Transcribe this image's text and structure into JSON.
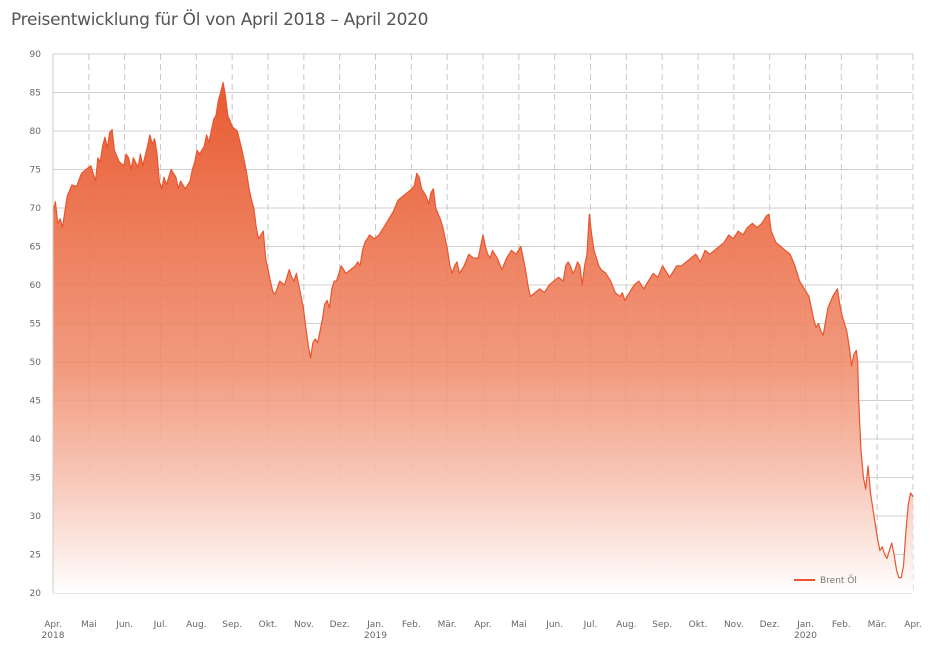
{
  "title": "Preisentwicklung für Öl von April 2018 – April 2020",
  "colors": {
    "line": "#e8552f",
    "fill_top": "#e85a30",
    "fill_bottom": "#ffffff",
    "grid": "#d0d0d0",
    "vgrid": "#c8c8c8"
  },
  "chart_data": {
    "type": "area",
    "title": "Preisentwicklung für Öl von April 2018 – April 2020",
    "xlabel": "",
    "ylabel": "",
    "ylim": [
      20,
      90
    ],
    "yticks": [
      20,
      25,
      30,
      35,
      40,
      45,
      50,
      55,
      60,
      65,
      70,
      75,
      80,
      85,
      90
    ],
    "grid": true,
    "legend": "bottom-right",
    "x_tick_labels": [
      {
        "label": "Apr.",
        "sub": "2018"
      },
      {
        "label": "Mai",
        "sub": ""
      },
      {
        "label": "Jun.",
        "sub": ""
      },
      {
        "label": "Jul.",
        "sub": ""
      },
      {
        "label": "Aug.",
        "sub": ""
      },
      {
        "label": "Sep.",
        "sub": ""
      },
      {
        "label": "Okt.",
        "sub": ""
      },
      {
        "label": "Nov.",
        "sub": ""
      },
      {
        "label": "Dez.",
        "sub": ""
      },
      {
        "label": "Jan.",
        "sub": "2019"
      },
      {
        "label": "Feb.",
        "sub": ""
      },
      {
        "label": "Mär.",
        "sub": ""
      },
      {
        "label": "Apr.",
        "sub": ""
      },
      {
        "label": "Mai",
        "sub": ""
      },
      {
        "label": "Jun.",
        "sub": ""
      },
      {
        "label": "Jul.",
        "sub": ""
      },
      {
        "label": "Aug.",
        "sub": ""
      },
      {
        "label": "Sep.",
        "sub": ""
      },
      {
        "label": "Okt.",
        "sub": ""
      },
      {
        "label": "Nov.",
        "sub": ""
      },
      {
        "label": "Dez.",
        "sub": ""
      },
      {
        "label": "Jan.",
        "sub": "2020"
      },
      {
        "label": "Feb.",
        "sub": ""
      },
      {
        "label": "Mär.",
        "sub": ""
      },
      {
        "label": "Apr.",
        "sub": ""
      }
    ],
    "series": [
      {
        "name": "Brent Öl",
        "points": [
          [
            0.0,
            69.5
          ],
          [
            0.05,
            70.8
          ],
          [
            0.1,
            68.0
          ],
          [
            0.15,
            68.6
          ],
          [
            0.2,
            67.5
          ],
          [
            0.3,
            71.5
          ],
          [
            0.4,
            73.0
          ],
          [
            0.5,
            72.8
          ],
          [
            0.6,
            74.5
          ],
          [
            0.7,
            75.0
          ],
          [
            0.8,
            75.5
          ],
          [
            0.9,
            73.5
          ],
          [
            0.95,
            76.5
          ],
          [
            1.0,
            76.0
          ],
          [
            1.05,
            78.0
          ],
          [
            1.1,
            79.2
          ],
          [
            1.15,
            77.8
          ],
          [
            1.2,
            79.8
          ],
          [
            1.25,
            80.2
          ],
          [
            1.3,
            77.5
          ],
          [
            1.4,
            76.0
          ],
          [
            1.5,
            75.5
          ],
          [
            1.55,
            77.0
          ],
          [
            1.6,
            76.5
          ],
          [
            1.65,
            75.0
          ],
          [
            1.7,
            76.5
          ],
          [
            1.8,
            75.3
          ],
          [
            1.85,
            77.0
          ],
          [
            1.9,
            75.5
          ],
          [
            2.0,
            78.0
          ],
          [
            2.05,
            79.5
          ],
          [
            2.1,
            78.3
          ],
          [
            2.15,
            79.0
          ],
          [
            2.2,
            77.0
          ],
          [
            2.25,
            73.5
          ],
          [
            2.3,
            72.5
          ],
          [
            2.35,
            74.0
          ],
          [
            2.4,
            73.0
          ],
          [
            2.5,
            75.0
          ],
          [
            2.6,
            74.0
          ],
          [
            2.65,
            72.5
          ],
          [
            2.7,
            73.5
          ],
          [
            2.8,
            72.5
          ],
          [
            2.9,
            73.5
          ],
          [
            2.95,
            75.0
          ],
          [
            3.0,
            76.0
          ],
          [
            3.05,
            77.5
          ],
          [
            3.1,
            77.0
          ],
          [
            3.2,
            78.0
          ],
          [
            3.25,
            79.5
          ],
          [
            3.3,
            78.5
          ],
          [
            3.35,
            80.0
          ],
          [
            3.4,
            81.5
          ],
          [
            3.45,
            82.0
          ],
          [
            3.5,
            84.0
          ],
          [
            3.55,
            85.0
          ],
          [
            3.6,
            86.3
          ],
          [
            3.65,
            84.5
          ],
          [
            3.7,
            82.0
          ],
          [
            3.8,
            80.5
          ],
          [
            3.9,
            80.0
          ],
          [
            4.0,
            77.5
          ],
          [
            4.05,
            76.0
          ],
          [
            4.1,
            74.5
          ],
          [
            4.15,
            72.5
          ],
          [
            4.2,
            71.0
          ],
          [
            4.25,
            70.0
          ],
          [
            4.3,
            67.5
          ],
          [
            4.35,
            66.0
          ],
          [
            4.4,
            66.5
          ],
          [
            4.45,
            67.0
          ],
          [
            4.5,
            63.5
          ],
          [
            4.55,
            62.0
          ],
          [
            4.6,
            60.5
          ],
          [
            4.65,
            59.2
          ],
          [
            4.7,
            58.8
          ],
          [
            4.8,
            60.5
          ],
          [
            4.9,
            60.0
          ],
          [
            5.0,
            62.0
          ],
          [
            5.05,
            61.0
          ],
          [
            5.1,
            60.5
          ],
          [
            5.15,
            61.5
          ],
          [
            5.2,
            60.0
          ],
          [
            5.25,
            58.5
          ],
          [
            5.3,
            57.0
          ],
          [
            5.35,
            54.5
          ],
          [
            5.4,
            52.2
          ],
          [
            5.45,
            50.5
          ],
          [
            5.5,
            52.5
          ],
          [
            5.55,
            53.0
          ],
          [
            5.6,
            52.5
          ],
          [
            5.65,
            54.0
          ],
          [
            5.7,
            55.5
          ],
          [
            5.75,
            57.5
          ],
          [
            5.8,
            58.0
          ],
          [
            5.85,
            57.0
          ],
          [
            5.9,
            59.5
          ],
          [
            5.95,
            60.5
          ],
          [
            6.0,
            60.5
          ],
          [
            6.05,
            61.5
          ],
          [
            6.1,
            62.5
          ],
          [
            6.2,
            61.5
          ],
          [
            6.3,
            62.0
          ],
          [
            6.4,
            62.5
          ],
          [
            6.45,
            63.0
          ],
          [
            6.5,
            62.5
          ],
          [
            6.55,
            64.5
          ],
          [
            6.6,
            65.5
          ],
          [
            6.7,
            66.5
          ],
          [
            6.8,
            66.0
          ],
          [
            6.9,
            66.5
          ],
          [
            7.0,
            67.5
          ],
          [
            7.1,
            68.5
          ],
          [
            7.2,
            69.5
          ],
          [
            7.3,
            71.0
          ],
          [
            7.4,
            71.5
          ],
          [
            7.5,
            72.0
          ],
          [
            7.6,
            72.5
          ],
          [
            7.65,
            73.0
          ],
          [
            7.7,
            74.5
          ],
          [
            7.75,
            74.0
          ],
          [
            7.8,
            72.5
          ],
          [
            7.85,
            72.0
          ],
          [
            7.9,
            71.5
          ],
          [
            7.95,
            70.5
          ],
          [
            8.0,
            72.0
          ],
          [
            8.05,
            72.5
          ],
          [
            8.1,
            70.0
          ],
          [
            8.2,
            68.5
          ],
          [
            8.25,
            67.5
          ],
          [
            8.3,
            66.0
          ],
          [
            8.35,
            64.5
          ],
          [
            8.4,
            62.5
          ],
          [
            8.45,
            61.5
          ],
          [
            8.5,
            62.5
          ],
          [
            8.55,
            63.0
          ],
          [
            8.6,
            61.5
          ],
          [
            8.7,
            62.5
          ],
          [
            8.8,
            64.0
          ],
          [
            8.9,
            63.5
          ],
          [
            9.0,
            63.5
          ],
          [
            9.05,
            65.0
          ],
          [
            9.1,
            66.5
          ],
          [
            9.15,
            65.0
          ],
          [
            9.2,
            64.0
          ],
          [
            9.25,
            63.5
          ],
          [
            9.3,
            64.5
          ],
          [
            9.4,
            63.5
          ],
          [
            9.5,
            62.0
          ],
          [
            9.6,
            63.5
          ],
          [
            9.7,
            64.5
          ],
          [
            9.8,
            64.0
          ],
          [
            9.9,
            65.0
          ],
          [
            10.0,
            62.0
          ],
          [
            10.05,
            60.0
          ],
          [
            10.1,
            58.5
          ],
          [
            10.2,
            59.0
          ],
          [
            10.3,
            59.5
          ],
          [
            10.4,
            59.0
          ],
          [
            10.5,
            60.0
          ],
          [
            10.6,
            60.5
          ],
          [
            10.7,
            61.0
          ],
          [
            10.8,
            60.5
          ],
          [
            10.85,
            62.5
          ],
          [
            10.9,
            63.0
          ],
          [
            10.95,
            62.5
          ],
          [
            11.0,
            61.5
          ],
          [
            11.05,
            62.0
          ],
          [
            11.1,
            63.0
          ],
          [
            11.15,
            62.5
          ],
          [
            11.2,
            60.0
          ],
          [
            11.25,
            62.5
          ],
          [
            11.3,
            64.0
          ],
          [
            11.35,
            69.2
          ],
          [
            11.4,
            66.5
          ],
          [
            11.45,
            64.5
          ],
          [
            11.5,
            63.5
          ],
          [
            11.55,
            62.5
          ],
          [
            11.6,
            62.0
          ],
          [
            11.7,
            61.5
          ],
          [
            11.8,
            60.5
          ],
          [
            11.9,
            59.0
          ],
          [
            12.0,
            58.5
          ],
          [
            12.05,
            59.0
          ],
          [
            12.1,
            58.0
          ],
          [
            12.2,
            59.0
          ],
          [
            12.3,
            60.0
          ],
          [
            12.4,
            60.5
          ],
          [
            12.5,
            59.5
          ],
          [
            12.6,
            60.5
          ],
          [
            12.7,
            61.5
          ],
          [
            12.8,
            61.0
          ],
          [
            12.9,
            62.5
          ],
          [
            13.0,
            61.5
          ],
          [
            13.05,
            61.0
          ],
          [
            13.1,
            61.5
          ],
          [
            13.2,
            62.5
          ],
          [
            13.3,
            62.5
          ],
          [
            13.4,
            63.0
          ],
          [
            13.5,
            63.5
          ],
          [
            13.6,
            64.0
          ],
          [
            13.7,
            63.0
          ],
          [
            13.8,
            64.5
          ],
          [
            13.9,
            64.0
          ],
          [
            14.0,
            64.5
          ],
          [
            14.1,
            65.0
          ],
          [
            14.2,
            65.5
          ],
          [
            14.3,
            66.5
          ],
          [
            14.4,
            66.0
          ],
          [
            14.5,
            67.0
          ],
          [
            14.6,
            66.5
          ],
          [
            14.7,
            67.5
          ],
          [
            14.8,
            68.0
          ],
          [
            14.9,
            67.5
          ],
          [
            15.0,
            68.0
          ],
          [
            15.05,
            68.5
          ],
          [
            15.1,
            69.0
          ],
          [
            15.15,
            69.2
          ],
          [
            15.2,
            67.0
          ],
          [
            15.3,
            65.5
          ],
          [
            15.4,
            65.0
          ],
          [
            15.5,
            64.5
          ],
          [
            15.6,
            64.0
          ],
          [
            15.7,
            62.5
          ],
          [
            15.8,
            60.5
          ],
          [
            15.9,
            59.5
          ],
          [
            16.0,
            58.5
          ],
          [
            16.05,
            57.0
          ],
          [
            16.1,
            55.5
          ],
          [
            16.15,
            54.5
          ],
          [
            16.2,
            55.0
          ],
          [
            16.25,
            54.0
          ],
          [
            16.3,
            53.5
          ],
          [
            16.4,
            57.0
          ],
          [
            16.5,
            58.5
          ],
          [
            16.6,
            59.5
          ],
          [
            16.65,
            57.5
          ],
          [
            16.7,
            56.0
          ],
          [
            16.8,
            54.0
          ],
          [
            16.85,
            52.0
          ],
          [
            16.9,
            49.5
          ],
          [
            16.95,
            51.0
          ],
          [
            17.0,
            51.5
          ],
          [
            17.03,
            50.0
          ],
          [
            17.05,
            45.0
          ],
          [
            17.1,
            38.5
          ],
          [
            17.15,
            35.0
          ],
          [
            17.2,
            33.5
          ],
          [
            17.25,
            36.5
          ],
          [
            17.3,
            33.0
          ],
          [
            17.35,
            31.0
          ],
          [
            17.4,
            29.0
          ],
          [
            17.45,
            27.0
          ],
          [
            17.5,
            25.5
          ],
          [
            17.55,
            26.0
          ],
          [
            17.6,
            25.0
          ],
          [
            17.65,
            24.5
          ],
          [
            17.7,
            25.5
          ],
          [
            17.75,
            26.5
          ],
          [
            17.8,
            25.0
          ],
          [
            17.85,
            23.0
          ],
          [
            17.9,
            22.0
          ],
          [
            17.95,
            22.0
          ],
          [
            18.0,
            23.5
          ],
          [
            18.05,
            28.0
          ],
          [
            18.1,
            31.5
          ],
          [
            18.15,
            33.0
          ],
          [
            18.2,
            32.5
          ]
        ]
      }
    ]
  }
}
